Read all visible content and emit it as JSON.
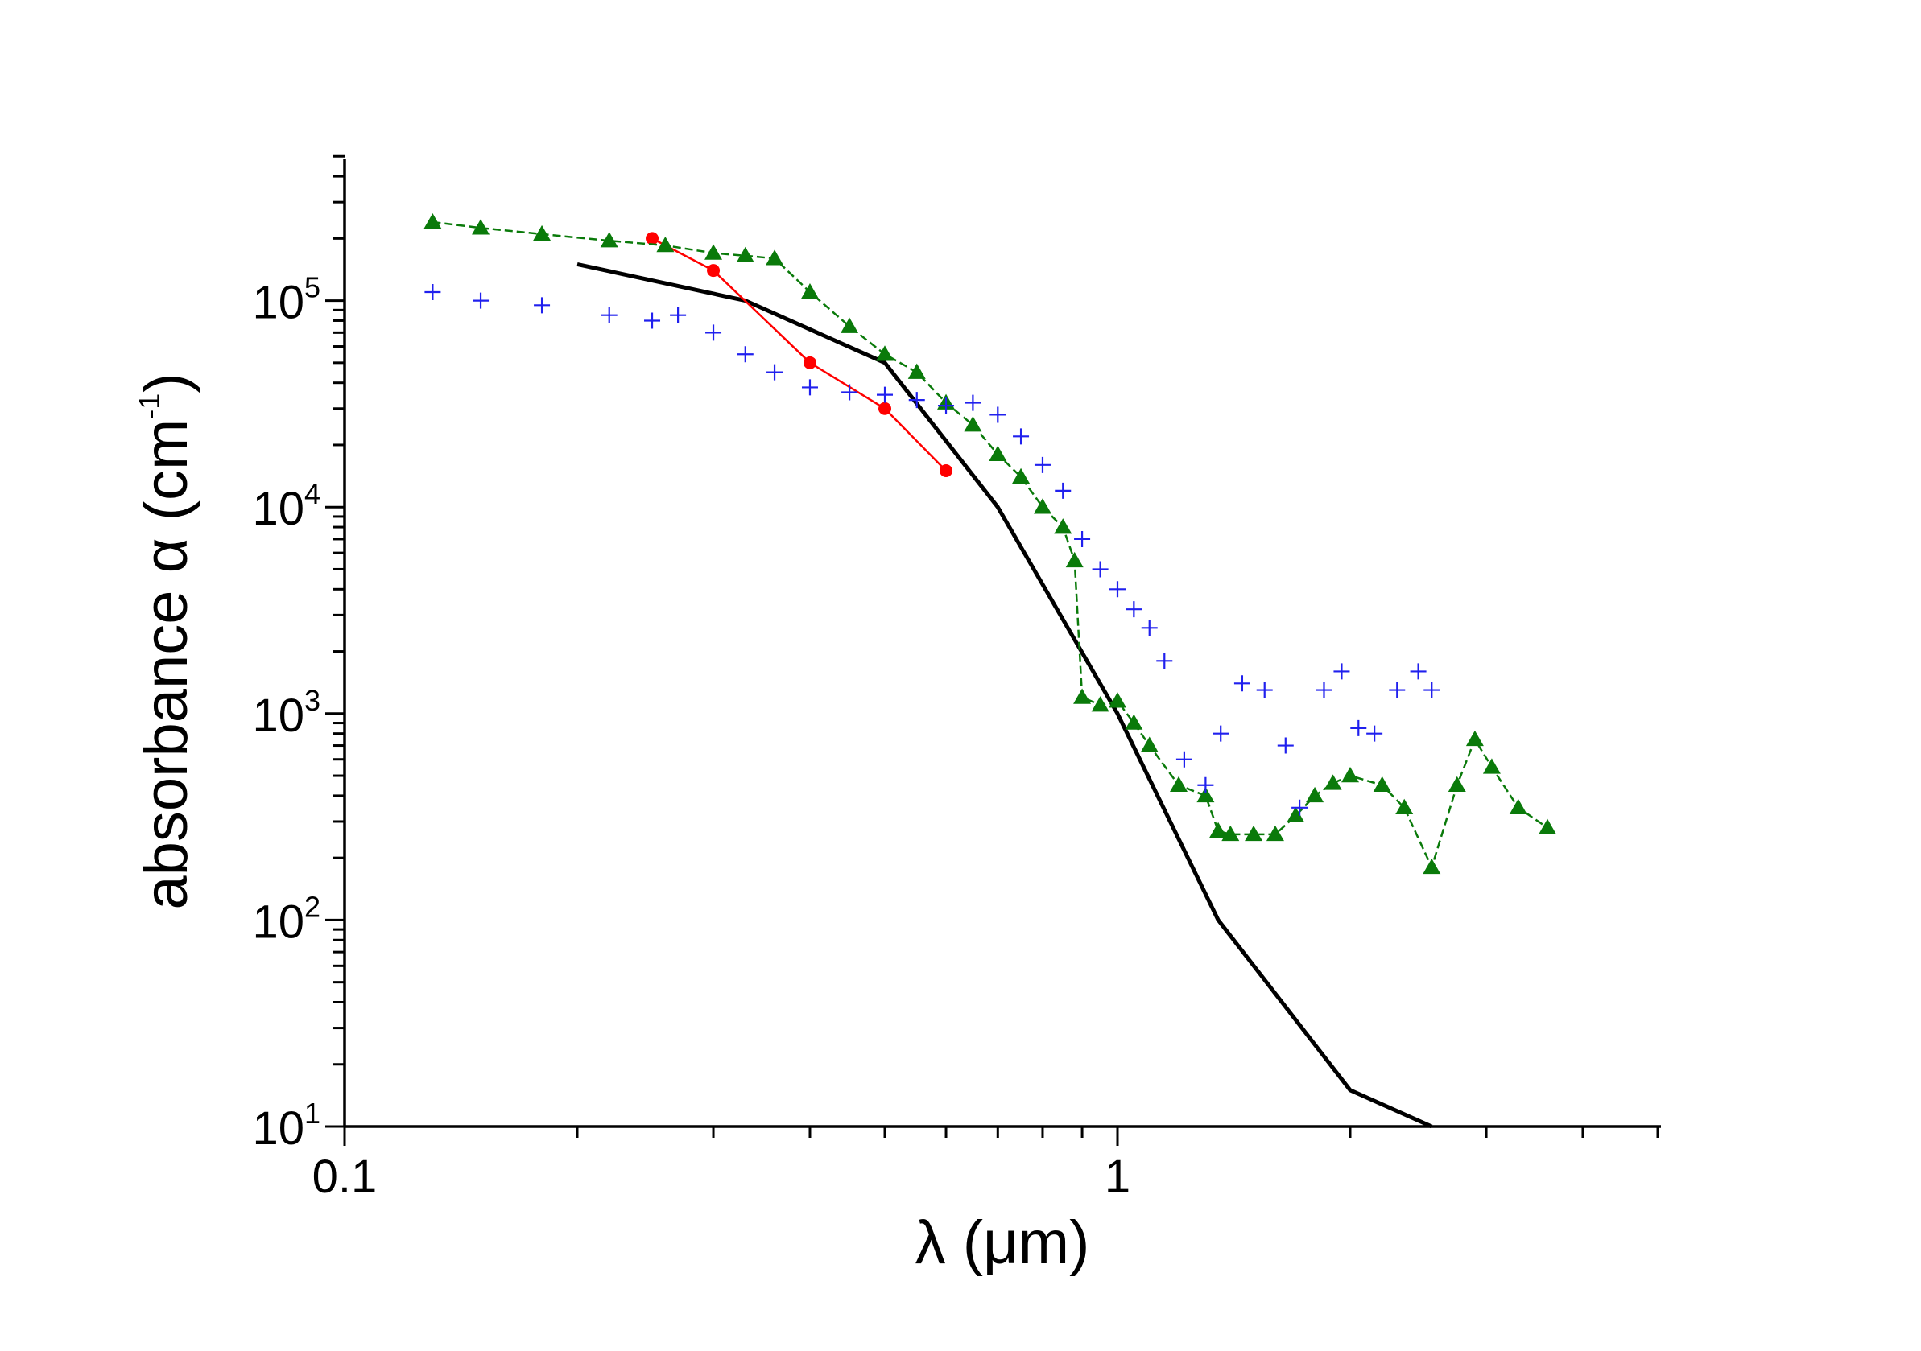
{
  "chart_data": {
    "type": "line",
    "title": "",
    "xlabel": "λ (μm)",
    "ylabel_main": "absorbance α (cm",
    "ylabel_sup": "-1",
    "ylabel_close": ")",
    "xscale": "log",
    "yscale": "log",
    "xlim": [
      0.1,
      5.0
    ],
    "ylim": [
      10,
      500000
    ],
    "grid": false,
    "legend": "none",
    "x_tick_labels": [
      {
        "value": 0.1,
        "label": "0.1"
      },
      {
        "value": 1,
        "label": "1"
      }
    ],
    "y_tick_labels": [
      {
        "value": 10,
        "base": "10",
        "exp": "1"
      },
      {
        "value": 100,
        "base": "10",
        "exp": "2"
      },
      {
        "value": 1000,
        "base": "10",
        "exp": "3"
      },
      {
        "value": 10000,
        "base": "10",
        "exp": "4"
      },
      {
        "value": 100000,
        "base": "10",
        "exp": "5"
      }
    ],
    "series": [
      {
        "name": "black-reference",
        "color": "#000000",
        "marker": "none",
        "line": true,
        "x": [
          0.2,
          0.33,
          0.5,
          0.7,
          1.0,
          1.35,
          2.0,
          2.55
        ],
        "y": [
          150000,
          100000,
          50000,
          10000,
          1000,
          100,
          15,
          10
        ]
      },
      {
        "name": "red-circles",
        "color": "#ff0000",
        "marker": "circle",
        "line": true,
        "x": [
          0.25,
          0.3,
          0.4,
          0.5,
          0.6
        ],
        "y": [
          200000,
          140000,
          50000,
          30000,
          15000
        ]
      },
      {
        "name": "green-triangles",
        "color": "#0a7a0a",
        "marker": "triangle",
        "line": true,
        "x": [
          0.13,
          0.15,
          0.18,
          0.22,
          0.26,
          0.3,
          0.33,
          0.36,
          0.4,
          0.45,
          0.5,
          0.55,
          0.6,
          0.65,
          0.7,
          0.75,
          0.8,
          0.85,
          0.88,
          0.9,
          0.95,
          1.0,
          1.05,
          1.1,
          1.2,
          1.3,
          1.35,
          1.4,
          1.5,
          1.6,
          1.7,
          1.8,
          1.9,
          2.0,
          2.2,
          2.35,
          2.55,
          2.75,
          2.9,
          3.05,
          3.3,
          3.6
        ],
        "y": [
          240000,
          225000,
          210000,
          195000,
          185000,
          170000,
          165000,
          160000,
          110000,
          75000,
          55000,
          45000,
          32000,
          25000,
          18000,
          14000,
          10000,
          8000,
          5500,
          1200,
          1100,
          1150,
          900,
          700,
          450,
          400,
          270,
          260,
          260,
          260,
          320,
          400,
          460,
          500,
          450,
          350,
          180,
          450,
          750,
          550,
          350,
          280
        ]
      },
      {
        "name": "blue-crosses",
        "color": "#2020ee",
        "marker": "plus",
        "line": false,
        "x": [
          0.13,
          0.15,
          0.18,
          0.22,
          0.25,
          0.27,
          0.3,
          0.33,
          0.36,
          0.4,
          0.45,
          0.5,
          0.55,
          0.6,
          0.65,
          0.7,
          0.75,
          0.8,
          0.85,
          0.9,
          0.95,
          1.0,
          1.05,
          1.1,
          1.15,
          1.22,
          1.3,
          1.36,
          1.45,
          1.55,
          1.65,
          1.72,
          1.85,
          1.95,
          2.05,
          2.15,
          2.3,
          2.45,
          2.55
        ],
        "y": [
          110000,
          100000,
          95000,
          85000,
          80000,
          85000,
          70000,
          55000,
          45000,
          38000,
          36000,
          35000,
          33000,
          31000,
          32000,
          28000,
          22000,
          16000,
          12000,
          7000,
          5000,
          4000,
          3200,
          2600,
          1800,
          600,
          450,
          800,
          1400,
          1300,
          700,
          350,
          1300,
          1600,
          850,
          800,
          1300,
          1600,
          1300
        ]
      }
    ]
  }
}
